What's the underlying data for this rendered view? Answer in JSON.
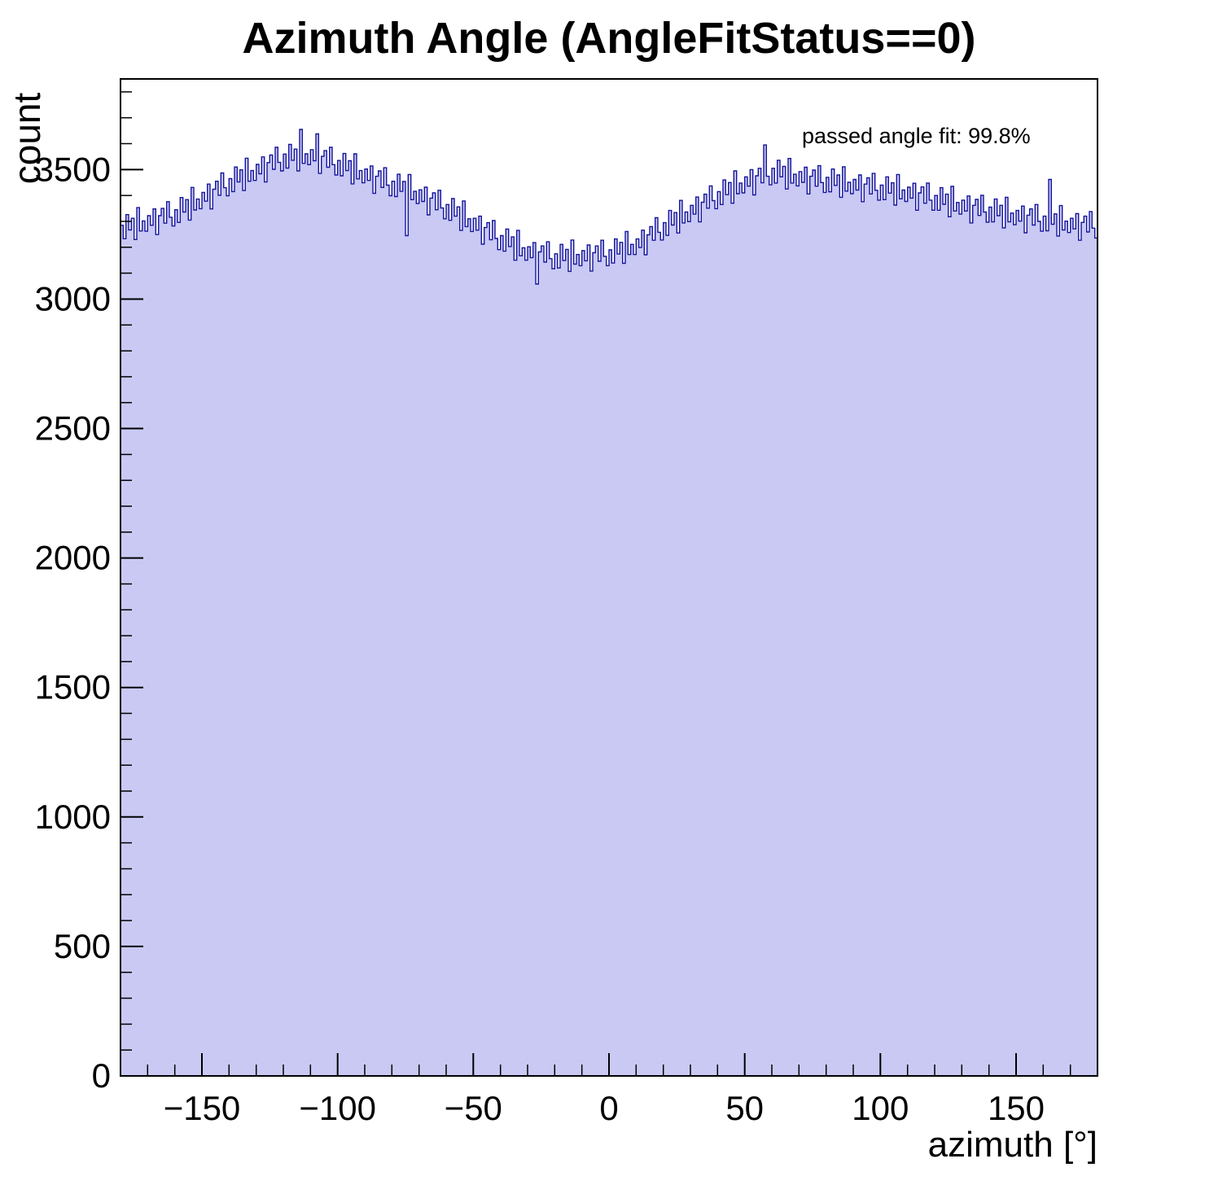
{
  "annotation": {
    "text": "passed angle fit: 99.8%"
  },
  "chart_data": {
    "type": "bar",
    "histogram": true,
    "title": "Azimuth Angle (AngleFitStatus==0)",
    "xlabel": "azimuth [°]",
    "ylabel": "count",
    "xlim": [
      -180,
      180
    ],
    "ylim": [
      0,
      3850
    ],
    "x_ticks_major": [
      -150,
      -100,
      -50,
      0,
      50,
      100,
      150
    ],
    "x_minor_step": 10,
    "y_ticks_major": [
      0,
      500,
      1000,
      1500,
      2000,
      2500,
      3000,
      3500
    ],
    "y_minor_step": 100,
    "y_minor_max": 3800,
    "grid": false,
    "legend_position": "none",
    "fill_color": "#c9c9f4",
    "line_color": "#16169c",
    "frame_color": "#000000",
    "bin_width": 1,
    "x_start": -180,
    "values": [
      3285,
      3233,
      3326,
      3267,
      3312,
      3230,
      3353,
      3263,
      3302,
      3262,
      3322,
      3285,
      3348,
      3249,
      3322,
      3350,
      3293,
      3376,
      3316,
      3282,
      3345,
      3296,
      3392,
      3336,
      3384,
      3305,
      3431,
      3344,
      3386,
      3349,
      3412,
      3378,
      3444,
      3348,
      3424,
      3455,
      3401,
      3487,
      3430,
      3399,
      3465,
      3415,
      3510,
      3452,
      3499,
      3419,
      3544,
      3455,
      3496,
      3458,
      3520,
      3484,
      3549,
      3452,
      3527,
      3556,
      3501,
      3586,
      3528,
      3495,
      3560,
      3506,
      3597,
      3536,
      3579,
      3495,
      3655,
      3524,
      3561,
      3519,
      3577,
      3534,
      3638,
      3485,
      3551,
      3573,
      3509,
      3586,
      3519,
      3479,
      3535,
      3476,
      3562,
      3496,
      3534,
      3445,
      3561,
      3464,
      3496,
      3449,
      3502,
      3458,
      3514,
      3408,
      3474,
      3495,
      3431,
      3507,
      3440,
      3399,
      3455,
      3396,
      3482,
      3416,
      3454,
      3245,
      3481,
      3384,
      3416,
      3369,
      3422,
      3377,
      3432,
      3325,
      3390,
      3410,
      3345,
      3420,
      3352,
      3310,
      3365,
      3304,
      3388,
      3320,
      3356,
      3265,
      3379,
      3280,
      3310,
      3261,
      3312,
      3266,
      3320,
      3212,
      3276,
      3295,
      3229,
      3303,
      3234,
      3191,
      3245,
      3185,
      3270,
      3203,
      3240,
      3150,
      3265,
      3167,
      3198,
      3150,
      3202,
      3160,
      3218,
      3058,
      3182,
      3205,
      3143,
      3221,
      3156,
      3117,
      3175,
      3120,
      3211,
      3149,
      3192,
      3107,
      3228,
      3135,
      3172,
      3129,
      3187,
      3148,
      3209,
      3108,
      3179,
      3205,
      3146,
      3227,
      3165,
      3129,
      3190,
      3139,
      3232,
      3174,
      3219,
      3138,
      3261,
      3172,
      3211,
      3172,
      3232,
      3199,
      3266,
      3171,
      3248,
      3280,
      3227,
      3314,
      3258,
      3228,
      3295,
      3246,
      3342,
      3286,
      3334,
      3255,
      3381,
      3294,
      3336,
      3299,
      3362,
      3328,
      3394,
      3298,
      3374,
      3405,
      3351,
      3437,
      3380,
      3349,
      3415,
      3365,
      3460,
      3403,
      3450,
      3370,
      3495,
      3407,
      3448,
      3410,
      3472,
      3436,
      3500,
      3402,
      3476,
      3505,
      3449,
      3595,
      3474,
      3441,
      3505,
      3448,
      3536,
      3472,
      3512,
      3425,
      3543,
      3448,
      3482,
      3437,
      3492,
      3451,
      3509,
      3406,
      3474,
      3498,
      3436,
      3515,
      3450,
      3412,
      3470,
      3414,
      3502,
      3439,
      3479,
      3393,
      3511,
      3417,
      3451,
      3407,
      3462,
      3421,
      3479,
      3376,
      3444,
      3468,
      3406,
      3485,
      3420,
      3382,
      3440,
      3384,
      3472,
      3409,
      3449,
      3363,
      3481,
      3387,
      3421,
      3377,
      3432,
      3390,
      3447,
      3343,
      3410,
      3433,
      3370,
      3448,
      3382,
      3343,
      3400,
      3343,
      3430,
      3366,
      3405,
      3318,
      3435,
      3340,
      3373,
      3328,
      3382,
      3340,
      3398,
      3294,
      3362,
      3385,
      3323,
      3401,
      3336,
      3297,
      3355,
      3298,
      3386,
      3322,
      3362,
      3275,
      3393,
      3298,
      3332,
      3287,
      3342,
      3301,
      3359,
      3256,
      3324,
      3348,
      3286,
      3365,
      3300,
      3262,
      3320,
      3264,
      3462,
      3289,
      3329,
      3243,
      3361,
      3267,
      3301,
      3257,
      3312,
      3271,
      3330,
      3227,
      3296,
      3320,
      3259,
      3338,
      3274,
      3236
    ]
  }
}
